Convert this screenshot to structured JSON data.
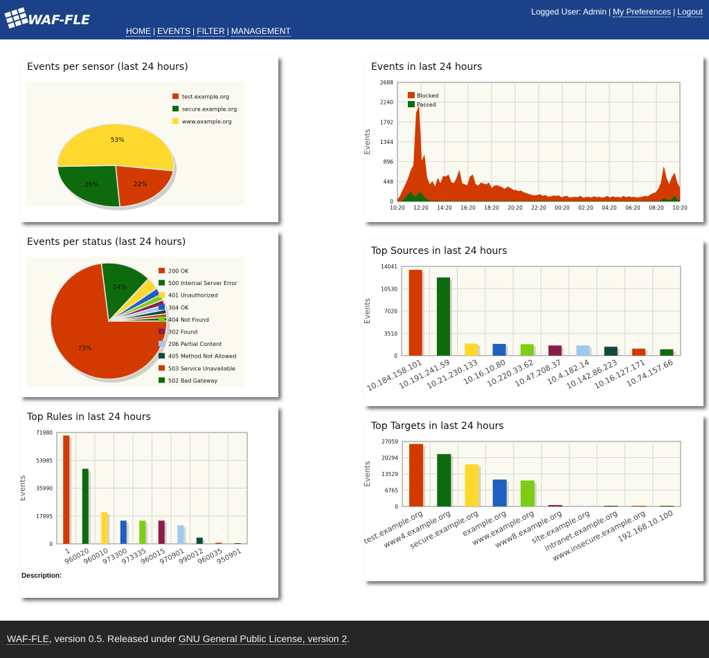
{
  "header": {
    "logo_text": "WAF-FLE",
    "nav": [
      {
        "label": "HOME"
      },
      {
        "label": "EVENTS"
      },
      {
        "label": "FILTER"
      },
      {
        "label": "MANAGEMENT"
      }
    ],
    "nav_separator": "|",
    "user_label": "Logged User: Admin",
    "preferences_link": "My Preferences",
    "logout_link": "Logout"
  },
  "panels": {
    "events_per_sensor": {
      "title": "Events per sensor (last 24 hours)"
    },
    "events_per_status": {
      "title": "Events per status (last 24 hours)"
    },
    "top_rules": {
      "title": "Top Rules in last 24 hours",
      "description_label": "Description:"
    },
    "events_24h": {
      "title": "Events in last 24 hours"
    },
    "top_sources": {
      "title": "Top Sources in last 24 hours"
    },
    "top_targets": {
      "title": "Top Targets in last 24 hours"
    }
  },
  "footer": {
    "app_link": "WAF-FLE",
    "text": ", version 0.5. Released under ",
    "license_link": "GNU General Public License, version 2",
    "end": "."
  },
  "colors": {
    "header_bg": "#1b4289",
    "footer_bg": "#262626",
    "red": "#d33a00",
    "green": "#0d6b0d",
    "yellow": "#ffd82e",
    "blue": "#1f5fbf",
    "lime": "#7ccd14",
    "maroon": "#8b1d4a",
    "lightblue": "#9fcaf0",
    "darkteal": "#0f4a3c"
  },
  "chart_data": [
    {
      "type": "pie",
      "title": "Events per sensor (last 24 hours)",
      "categories": [
        "test.example.org",
        "secure.example.org",
        "www.example.org"
      ],
      "values": [
        22,
        26,
        53
      ],
      "labels": [
        "22%",
        "26%",
        "53%"
      ],
      "colors": [
        "#d33a00",
        "#0d6b0d",
        "#ffd82e"
      ]
    },
    {
      "type": "pie",
      "title": "Events per status (last 24 hours)",
      "categories": [
        "200 OK",
        "500 Internal Server Error",
        "401 Unauthorized",
        "304 OK",
        "404 Not Found",
        "302 Found",
        "206 Partial Content",
        "405 Method Not Allowed",
        "503 Service Unavailable",
        "502 Bad Gateway"
      ],
      "values": [
        73,
        14,
        3.5,
        2,
        1.6,
        1.4,
        1.3,
        1.2,
        1.0,
        1.0
      ],
      "labels": [
        "73%",
        "14%",
        "",
        "",
        "",
        "",
        "",
        "",
        "",
        ""
      ],
      "colors": [
        "#d33a00",
        "#0d6b0d",
        "#ffd82e",
        "#1f5fbf",
        "#7ccd14",
        "#8b1d4a",
        "#9fcaf0",
        "#0f4a3c",
        "#d33a00",
        "#0d6b0d"
      ]
    },
    {
      "type": "bar",
      "title": "Top Rules in last 24 hours",
      "ylabel": "Events",
      "yticks": [
        "0",
        "17995",
        "35990",
        "53985",
        "71980"
      ],
      "ylim": [
        0,
        71980
      ],
      "categories": [
        "1",
        "960020",
        "960010",
        "973300",
        "973335",
        "960015",
        "970901",
        "990012",
        "960035",
        "950901"
      ],
      "values": [
        70000,
        48500,
        20500,
        15000,
        15000,
        15000,
        12000,
        4000,
        700,
        300
      ],
      "colors": [
        "#d33a00",
        "#0d6b0d",
        "#ffd82e",
        "#1f5fbf",
        "#7ccd14",
        "#8b1d4a",
        "#9fcaf0",
        "#0f4a3c",
        "#d33a00",
        "#0d6b0d"
      ]
    },
    {
      "type": "area",
      "title": "Events in last 24 hours",
      "ylabel": "Events",
      "yticks": [
        "0",
        "448",
        "896",
        "1344",
        "1792",
        "2240",
        "2688"
      ],
      "ylim": [
        0,
        2688
      ],
      "xticks": [
        "10:20",
        "12:20",
        "14:20",
        "16:20",
        "18:20",
        "20:20",
        "22:20",
        "00:20",
        "02:20",
        "04:20",
        "06:20",
        "08:20",
        "10:20"
      ],
      "series": [
        {
          "name": "Blocked",
          "color": "#d33a00",
          "values": [
            40,
            120,
            260,
            380,
            520,
            700,
            820,
            2000,
            2150,
            900,
            1050,
            540,
            380,
            450,
            330,
            520,
            400,
            570,
            560,
            600,
            430,
            410,
            520,
            700,
            410,
            380,
            360,
            560,
            600,
            390,
            350,
            420,
            400,
            380,
            420,
            300,
            350,
            360,
            340,
            310,
            280,
            330,
            300,
            260,
            250,
            230,
            240,
            200,
            180,
            160,
            140,
            130,
            140,
            160,
            120,
            140,
            100,
            110,
            130,
            120,
            130,
            90,
            110,
            120,
            80,
            90,
            100,
            90,
            120,
            80,
            90,
            100,
            80,
            110,
            90,
            100,
            80,
            90,
            120,
            80,
            110,
            90,
            100,
            80,
            120,
            90,
            110,
            90,
            100,
            80,
            90,
            100,
            120,
            110,
            150,
            180,
            200,
            280,
            420,
            780,
            520,
            380,
            540,
            640,
            420,
            300
          ]
        },
        {
          "name": "Passed",
          "color": "#0d6b0d",
          "values": [
            0,
            0,
            30,
            80,
            160,
            220,
            120,
            100,
            200,
            180,
            90,
            40,
            20,
            10,
            10,
            10,
            5,
            5,
            0,
            0,
            0,
            0,
            0,
            0,
            0,
            0,
            0,
            0,
            0,
            0,
            0,
            0,
            0,
            0,
            0,
            0,
            0,
            0,
            0,
            0,
            0,
            0,
            0,
            0,
            0,
            0,
            0,
            0,
            0,
            0,
            0,
            0,
            0,
            0,
            0,
            0,
            0,
            0,
            0,
            0,
            0,
            0,
            0,
            0,
            0,
            0,
            0,
            0,
            0,
            0,
            0,
            0,
            0,
            0,
            0,
            0,
            0,
            0,
            0,
            0,
            0,
            0,
            0,
            0,
            0,
            0,
            0,
            0,
            0,
            0,
            0,
            0,
            0,
            0,
            0,
            0,
            0,
            0,
            20,
            60,
            40,
            20,
            50,
            120,
            40,
            10
          ]
        }
      ]
    },
    {
      "type": "bar",
      "title": "Top Sources in last 24 hours",
      "ylabel": "Events",
      "yticks": [
        "0",
        "3510",
        "7020",
        "10530",
        "14041"
      ],
      "ylim": [
        0,
        14041
      ],
      "categories": [
        "10.184.158.101",
        "10.191.241.59",
        "10.21.230.133",
        "10.16.10.80",
        "10.220.33.62",
        "10.47.208.37",
        "10.4.182.14",
        "10.142.86.223",
        "10.16.127.171",
        "10.74.157.66"
      ],
      "values": [
        13500,
        12300,
        1900,
        1850,
        1800,
        1600,
        1600,
        1400,
        1100,
        1000
      ],
      "colors": [
        "#d33a00",
        "#0d6b0d",
        "#ffd82e",
        "#1f5fbf",
        "#7ccd14",
        "#8b1d4a",
        "#9fcaf0",
        "#0f4a3c",
        "#d33a00",
        "#0d6b0d"
      ]
    },
    {
      "type": "bar",
      "title": "Top Targets in last 24 hours",
      "ylabel": "Events",
      "yticks": [
        "0",
        "6765",
        "13529",
        "20294",
        "27059"
      ],
      "ylim": [
        0,
        27059
      ],
      "categories": [
        "test.example.org",
        "www4.example.org",
        "secure.example.org",
        "example.org",
        "www.example.org",
        "www8.example.org",
        "site.example.org",
        "intranet.example.org",
        "www.insecure.example.org",
        "192.168.10.100"
      ],
      "values": [
        26000,
        21800,
        17500,
        11200,
        10800,
        600,
        250,
        180,
        150,
        100
      ],
      "colors": [
        "#d33a00",
        "#0d6b0d",
        "#ffd82e",
        "#1f5fbf",
        "#7ccd14",
        "#8b1d4a",
        "#9fcaf0",
        "#0f4a3c",
        "#d33a00",
        "#0d6b0d"
      ]
    }
  ]
}
